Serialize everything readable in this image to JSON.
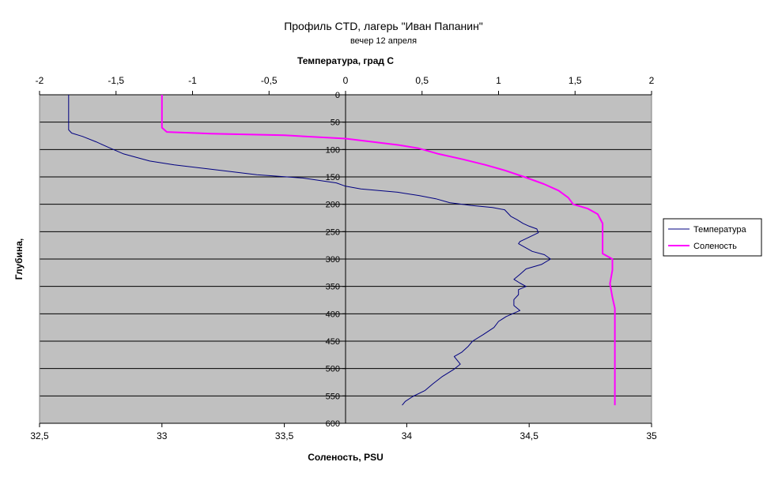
{
  "chart_data": {
    "type": "line",
    "title": "Профиль CTD, лагерь \"Иван Папанин\"",
    "subtitle": "вечер 12 апреля",
    "top_axis": {
      "label": "Температура, град С",
      "range": [
        -2,
        2
      ],
      "ticks": [
        "-2",
        "-1,5",
        "-1",
        "-0,5",
        "0",
        "0,5",
        "1",
        "1,5",
        "2"
      ]
    },
    "bottom_axis": {
      "label": "Соленость, PSU",
      "range": [
        32.5,
        35
      ],
      "ticks": [
        "32,5",
        "33",
        "33,5",
        "34",
        "34,5",
        "35"
      ]
    },
    "y_axis": {
      "label": "Глубина,",
      "range": [
        0,
        600
      ],
      "reversed": true,
      "ticks": [
        "0",
        "50",
        "100",
        "150",
        "200",
        "250",
        "300",
        "350",
        "400",
        "450",
        "500",
        "550",
        "600"
      ]
    },
    "grid": "horizontal",
    "plot_background": "#c0c0c0",
    "legend_position": "right",
    "series": [
      {
        "name": "Температура",
        "axis": "top",
        "color": "#000080",
        "points": [
          [
            -1.81,
            0
          ],
          [
            -1.81,
            64
          ],
          [
            -1.79,
            70
          ],
          [
            -1.72,
            76
          ],
          [
            -1.63,
            86
          ],
          [
            -1.55,
            96
          ],
          [
            -1.45,
            108
          ],
          [
            -1.28,
            121
          ],
          [
            -1.12,
            128
          ],
          [
            -0.88,
            136
          ],
          [
            -0.58,
            146
          ],
          [
            -0.28,
            152
          ],
          [
            -0.06,
            161
          ],
          [
            0.0,
            167
          ],
          [
            0.1,
            172
          ],
          [
            0.34,
            178
          ],
          [
            0.48,
            184
          ],
          [
            0.59,
            190
          ],
          [
            0.68,
            197
          ],
          [
            0.82,
            202
          ],
          [
            0.96,
            206
          ],
          [
            1.04,
            210
          ],
          [
            1.08,
            222
          ],
          [
            1.12,
            228
          ],
          [
            1.16,
            235
          ],
          [
            1.2,
            240
          ],
          [
            1.25,
            245
          ],
          [
            1.26,
            252
          ],
          [
            1.2,
            260
          ],
          [
            1.14,
            268
          ],
          [
            1.13,
            272
          ],
          [
            1.22,
            286
          ],
          [
            1.3,
            292
          ],
          [
            1.34,
            300
          ],
          [
            1.28,
            310
          ],
          [
            1.18,
            318
          ],
          [
            1.14,
            328
          ],
          [
            1.1,
            337
          ],
          [
            1.14,
            344
          ],
          [
            1.18,
            350
          ],
          [
            1.13,
            356
          ],
          [
            1.13,
            365
          ],
          [
            1.1,
            374
          ],
          [
            1.1,
            385
          ],
          [
            1.14,
            394
          ],
          [
            1.05,
            405
          ],
          [
            1.0,
            414
          ],
          [
            0.97,
            425
          ],
          [
            0.9,
            438
          ],
          [
            0.83,
            450
          ],
          [
            0.8,
            460
          ],
          [
            0.76,
            470
          ],
          [
            0.71,
            478
          ],
          [
            0.75,
            492
          ],
          [
            0.71,
            501
          ],
          [
            0.63,
            515
          ],
          [
            0.57,
            528
          ],
          [
            0.52,
            540
          ],
          [
            0.44,
            551
          ],
          [
            0.39,
            560
          ],
          [
            0.37,
            567
          ]
        ]
      },
      {
        "name": "Соленость",
        "axis": "bottom",
        "color": "#ff00ff",
        "points": [
          [
            33.0,
            0
          ],
          [
            33.0,
            60
          ],
          [
            33.02,
            68
          ],
          [
            33.2,
            71
          ],
          [
            33.5,
            74
          ],
          [
            33.75,
            80
          ],
          [
            33.86,
            86
          ],
          [
            33.97,
            92
          ],
          [
            34.05,
            98
          ],
          [
            34.13,
            108
          ],
          [
            34.23,
            118
          ],
          [
            34.32,
            128
          ],
          [
            34.4,
            138
          ],
          [
            34.48,
            150
          ],
          [
            34.56,
            163
          ],
          [
            34.62,
            175
          ],
          [
            34.66,
            188
          ],
          [
            34.68,
            200
          ],
          [
            34.74,
            208
          ],
          [
            34.78,
            218
          ],
          [
            34.8,
            235
          ],
          [
            34.8,
            248
          ],
          [
            34.8,
            262
          ],
          [
            34.8,
            280
          ],
          [
            34.8,
            290
          ],
          [
            34.84,
            300
          ],
          [
            34.84,
            320
          ],
          [
            34.83,
            345
          ],
          [
            34.84,
            370
          ],
          [
            34.85,
            390
          ],
          [
            34.85,
            420
          ],
          [
            34.85,
            460
          ],
          [
            34.85,
            500
          ],
          [
            34.85,
            540
          ],
          [
            34.85,
            567
          ]
        ]
      }
    ]
  }
}
